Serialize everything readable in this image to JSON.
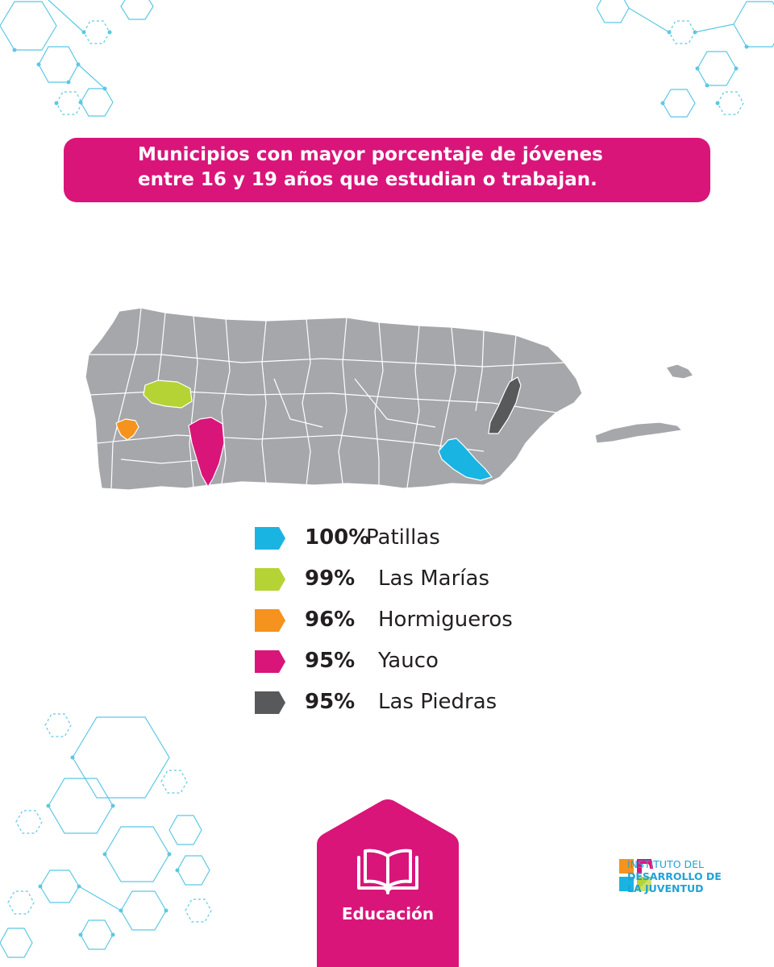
{
  "title": {
    "line1": "Municipios con mayor porcentaje de jóvenes",
    "line2": "entre 16 y 19 años que estudian o trabajan."
  },
  "colors": {
    "brand_pink": "#d9157a",
    "map_gray": "#a6a7ab",
    "patillas": "#1ab4e2",
    "las_marias": "#b5d334",
    "hormigueros": "#f6921e",
    "yauco": "#d9157a",
    "las_piedras": "#58595b",
    "deco_blue": "#5cc8e4"
  },
  "legend": [
    {
      "value": "100%",
      "municipio": "Patillas",
      "color": "#1ab4e2"
    },
    {
      "value": "99%",
      "municipio": "Las Marías",
      "color": "#b5d334"
    },
    {
      "value": "96%",
      "municipio": "Hormigueros",
      "color": "#f6921e"
    },
    {
      "value": "95%",
      "municipio": "Yauco",
      "color": "#d9157a"
    },
    {
      "value": "95%",
      "municipio": "Las Piedras",
      "color": "#58595b"
    }
  ],
  "category": {
    "label": "Educación",
    "icon": "open-book-icon"
  },
  "logo": {
    "line1": "INSTITUTO DEL",
    "line2": "DESARROLLO DE",
    "line3": "LA JUVENTUD"
  }
}
